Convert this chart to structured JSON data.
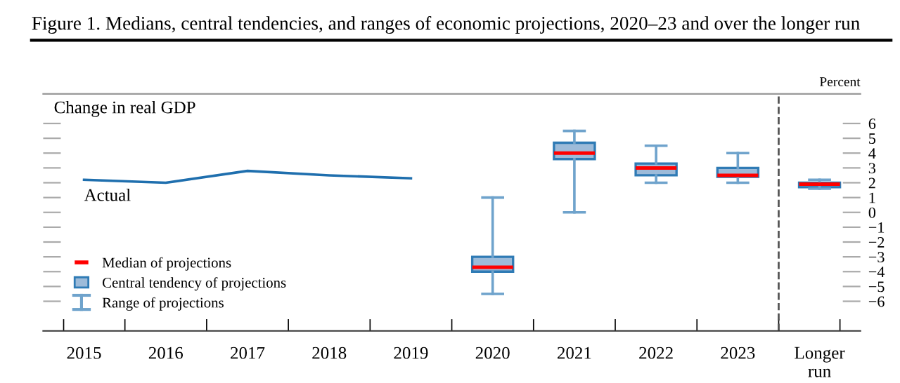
{
  "chart_data": {
    "type": "box",
    "title": "Figure 1. Medians, central tendencies, and ranges of economic projections, 2020–23 and over the longer run",
    "subtitle": "Change in real GDP",
    "ylabel": "Percent",
    "categories": [
      "2015",
      "2016",
      "2017",
      "2018",
      "2019",
      "2020",
      "2021",
      "2022",
      "2023",
      "Longer\nrun"
    ],
    "series": [
      {
        "name": "Actual",
        "type": "line",
        "color": "#1f6fae",
        "values": [
          2.2,
          2.0,
          2.8,
          2.5,
          2.3,
          null,
          null,
          null,
          null,
          null
        ]
      },
      {
        "color": "#2f7bb5",
        "boxes": [
          null,
          null,
          null,
          null,
          null,
          {
            "low": -5.5,
            "q1": -4.0,
            "median": -3.7,
            "q3": -3.0,
            "high": 1.0
          },
          {
            "low": 0.0,
            "q1": 3.6,
            "median": 4.0,
            "q3": 4.7,
            "high": 5.5
          },
          {
            "low": 2.0,
            "q1": 2.5,
            "median": 3.0,
            "q3": 3.3,
            "high": 4.5
          },
          {
            "low": 2.0,
            "q1": 2.4,
            "median": 2.5,
            "q3": 3.0,
            "high": 4.0
          },
          {
            "low": 1.6,
            "q1": 1.7,
            "median": 1.9,
            "q3": 2.0,
            "high": 2.2
          }
        ]
      }
    ],
    "annotations": [
      "Median of projections",
      "Central tendency of projections",
      "Range of projections"
    ],
    "ylim": [
      -8,
      8
    ],
    "yticks": [
      6,
      5,
      4,
      3,
      2,
      1,
      0,
      {
        "value": -1,
        "label": "−1"
      },
      {
        "value": -2,
        "label": "−2"
      },
      {
        "value": -3,
        "label": "−3"
      },
      {
        "value": -4,
        "label": "−4"
      },
      {
        "value": -5,
        "label": "−5"
      },
      {
        "value": -6,
        "label": "−6"
      }
    ],
    "grid": false
  }
}
